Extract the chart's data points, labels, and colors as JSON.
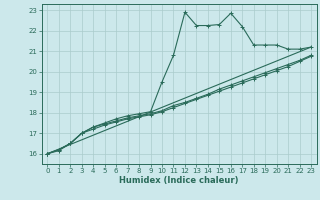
{
  "xlabel": "Humidex (Indice chaleur)",
  "xlim": [
    -0.5,
    23.5
  ],
  "ylim": [
    15.5,
    23.3
  ],
  "yticks": [
    16,
    17,
    18,
    19,
    20,
    21,
    22,
    23
  ],
  "xticks": [
    0,
    1,
    2,
    3,
    4,
    5,
    6,
    7,
    8,
    9,
    10,
    11,
    12,
    13,
    14,
    15,
    16,
    17,
    18,
    19,
    20,
    21,
    22,
    23
  ],
  "bg_color": "#cce8eb",
  "grid_color": "#aacccc",
  "line_color": "#2a6b5a",
  "line1_x": [
    0,
    1,
    2,
    3,
    4,
    5,
    6,
    7,
    8,
    9,
    10,
    11,
    12,
    13,
    14,
    15,
    16,
    17,
    18,
    19,
    20,
    21,
    22,
    23
  ],
  "line1_y": [
    16.0,
    16.2,
    16.5,
    17.0,
    17.3,
    17.5,
    17.7,
    17.85,
    17.95,
    18.05,
    19.5,
    20.8,
    22.9,
    22.25,
    22.25,
    22.3,
    22.85,
    22.2,
    21.3,
    21.3,
    21.3,
    21.1,
    21.1,
    21.2
  ],
  "line2_x": [
    0,
    1,
    2,
    3,
    4,
    5,
    6,
    7,
    8,
    9,
    10,
    11,
    12,
    13,
    14,
    15,
    16,
    17,
    18,
    19,
    20,
    21,
    22,
    23
  ],
  "line2_y": [
    16.0,
    16.2,
    16.5,
    17.0,
    17.3,
    17.45,
    17.6,
    17.75,
    17.85,
    17.95,
    18.1,
    18.35,
    18.5,
    18.7,
    18.9,
    19.15,
    19.35,
    19.55,
    19.75,
    19.95,
    20.15,
    20.35,
    20.55,
    20.8
  ],
  "line3_x": [
    0,
    23
  ],
  "line3_y": [
    16.0,
    21.2
  ],
  "line4_x": [
    0,
    1,
    2,
    3,
    4,
    5,
    6,
    7,
    8,
    9,
    10,
    11,
    12,
    13,
    14,
    15,
    16,
    17,
    18,
    19,
    20,
    21,
    22,
    23
  ],
  "line4_y": [
    16.0,
    16.15,
    16.5,
    17.0,
    17.2,
    17.4,
    17.55,
    17.7,
    17.8,
    17.9,
    18.05,
    18.25,
    18.45,
    18.65,
    18.85,
    19.05,
    19.25,
    19.45,
    19.65,
    19.85,
    20.05,
    20.25,
    20.5,
    20.75
  ]
}
